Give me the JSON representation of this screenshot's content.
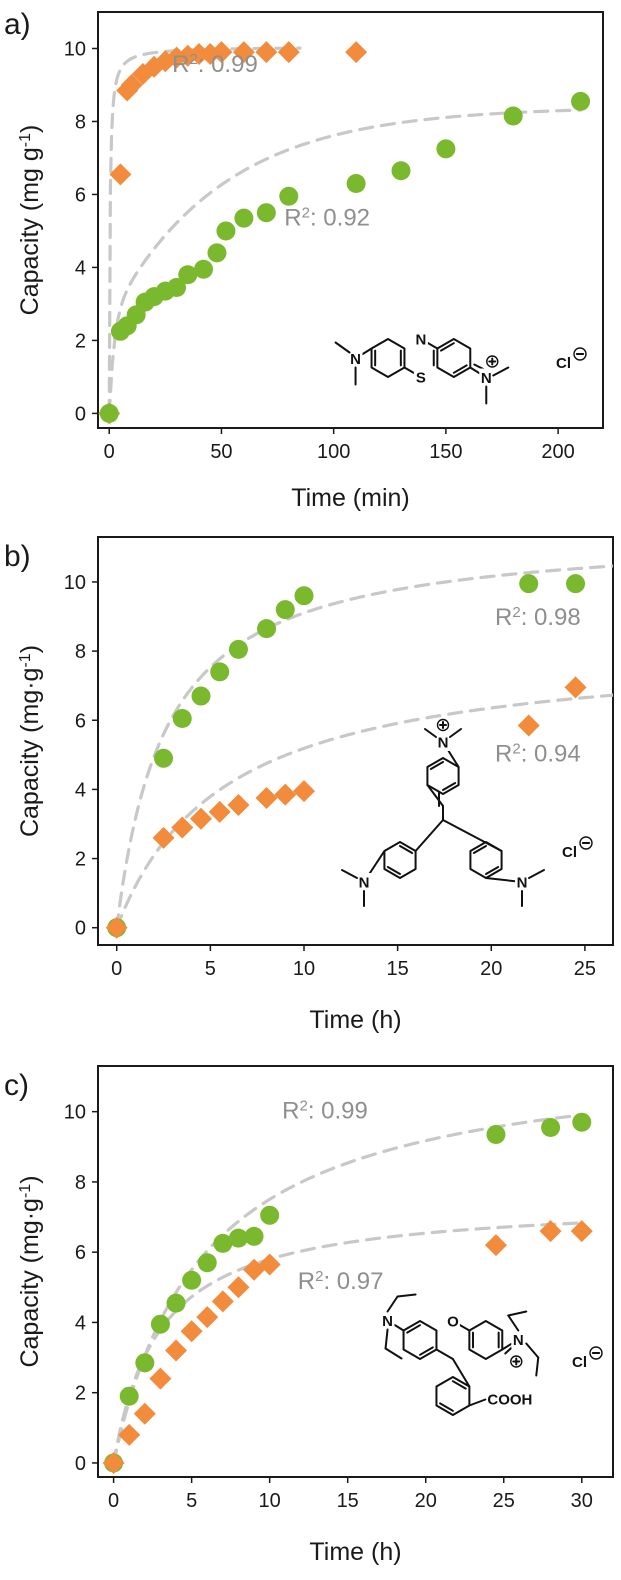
{
  "chart_data": [
    {
      "type": "scatter",
      "panel_label": "a)",
      "xlabel": "Time (min)",
      "ylabel": "Capacity (mg g-1)",
      "ylabel_parts": [
        "Capacity (mg g",
        "-1",
        ")"
      ],
      "xlim": [
        -5,
        220
      ],
      "ylim": [
        -0.4,
        11
      ],
      "xticks": [
        0,
        50,
        100,
        150,
        200
      ],
      "yticks": [
        0,
        2,
        4,
        6,
        8,
        10
      ],
      "xtick_labels": [
        "0",
        "50",
        "100",
        "150",
        "200"
      ],
      "ytick_labels": [
        "0",
        "2",
        "4",
        "6",
        "8",
        "10"
      ],
      "series": [
        {
          "marker": "diamond",
          "color": "#f28c3c",
          "x": [
            0,
            5,
            8,
            10,
            15,
            20,
            25,
            30,
            35,
            40,
            45,
            50,
            60,
            70,
            80,
            110
          ],
          "y": [
            0,
            6.55,
            8.85,
            9.0,
            9.3,
            9.5,
            9.65,
            9.75,
            9.8,
            9.85,
            9.85,
            9.9,
            9.9,
            9.9,
            9.9,
            9.9
          ],
          "fit": {
            "model": "pseudo-second-order",
            "qe": 10.05,
            "k": 0.3,
            "xmax": 85
          }
        },
        {
          "marker": "circle",
          "color": "#7ab82e",
          "x": [
            0,
            5,
            8,
            12,
            16,
            20,
            25,
            30,
            35,
            42,
            48,
            52,
            60,
            70,
            80,
            110,
            130,
            150,
            180,
            210
          ],
          "y": [
            0,
            2.25,
            2.4,
            2.7,
            3.05,
            3.2,
            3.35,
            3.45,
            3.8,
            3.95,
            4.4,
            5.0,
            5.35,
            5.5,
            5.95,
            6.3,
            6.65,
            7.25,
            8.15,
            8.55
          ],
          "fit": {
            "model": "two-rate",
            "a": 2.6,
            "k1": 0.45,
            "b": 5.8,
            "k2": 0.02,
            "xmax": 210
          }
        }
      ],
      "annotations": [
        {
          "base": "R",
          "sup": "2",
          "text": ": 0.99",
          "color": "#8f8f8f",
          "x": 28,
          "y": 9.35
        },
        {
          "base": "R",
          "sup": "2",
          "text": ": 0.92",
          "color": "#8f8f8f",
          "x": 78,
          "y": 5.15
        }
      ],
      "molecule": {
        "type": "methylene-blue",
        "counter_ion": "Cl",
        "atoms": [
          "N",
          "S",
          "N"
        ]
      }
    },
    {
      "type": "scatter",
      "panel_label": "b)",
      "xlabel": "Time (h)",
      "ylabel": "Capacity (mg·g-1)",
      "ylabel_parts": [
        "Capacity (mg·g",
        "-1",
        ")"
      ],
      "xlim": [
        -1,
        26.5
      ],
      "ylim": [
        -0.5,
        11.3
      ],
      "xticks": [
        0,
        5,
        10,
        15,
        20,
        25
      ],
      "yticks": [
        0,
        2,
        4,
        6,
        8,
        10
      ],
      "xtick_labels": [
        "0",
        "5",
        "10",
        "15",
        "20",
        "25"
      ],
      "ytick_labels": [
        "0",
        "2",
        "4",
        "6",
        "8",
        "10"
      ],
      "series": [
        {
          "marker": "circle",
          "color": "#7ab82e",
          "x": [
            0,
            2.5,
            3.5,
            4.5,
            5.5,
            6.5,
            8,
            9,
            10,
            22,
            24.5
          ],
          "y": [
            0,
            4.9,
            6.05,
            6.7,
            7.4,
            8.05,
            8.65,
            9.2,
            9.6,
            9.95,
            9.95
          ],
          "fit": {
            "model": "pseudo-second-order",
            "qe": 11.5,
            "k": 0.033,
            "xmax": 26.5
          }
        },
        {
          "marker": "diamond",
          "color": "#f28c3c",
          "x": [
            0,
            2.5,
            3.5,
            4.5,
            5.5,
            6.5,
            8,
            9,
            10,
            22,
            24.5
          ],
          "y": [
            0,
            2.6,
            2.9,
            3.15,
            3.35,
            3.55,
            3.75,
            3.85,
            3.95,
            5.85,
            6.95
          ],
          "fit": {
            "model": "pseudo-second-order",
            "qe": 8.2,
            "k": 0.021,
            "xmax": 26.5
          }
        }
      ],
      "annotations": [
        {
          "base": "R",
          "sup": "2",
          "text": ": 0.98",
          "color": "#8f8f8f",
          "x": 20.2,
          "y": 8.75
        },
        {
          "base": "R",
          "sup": "2",
          "text": ": 0.94",
          "color": "#8f8f8f",
          "x": 20.2,
          "y": 4.8
        }
      ],
      "molecule": {
        "type": "crystal-violet",
        "counter_ion": "Cl",
        "atoms": [
          "N",
          "N",
          "N"
        ]
      }
    },
    {
      "type": "scatter",
      "panel_label": "c)",
      "xlabel": "Time (h)",
      "ylabel": "Capacity (mg·g-1)",
      "ylabel_parts": [
        "Capacity (mg·g",
        "-1",
        ")"
      ],
      "xlim": [
        -1,
        32
      ],
      "ylim": [
        -0.4,
        11.3
      ],
      "xticks": [
        0,
        5,
        10,
        15,
        20,
        25,
        30
      ],
      "yticks": [
        0,
        2,
        4,
        6,
        8,
        10
      ],
      "xtick_labels": [
        "0",
        "5",
        "10",
        "15",
        "20",
        "25",
        "30"
      ],
      "ytick_labels": [
        "0",
        "2",
        "4",
        "6",
        "8",
        "10"
      ],
      "series": [
        {
          "marker": "circle",
          "color": "#7ab82e",
          "x": [
            0,
            1,
            2,
            3,
            4,
            5,
            6,
            7,
            8,
            9,
            10,
            24.5,
            28,
            30
          ],
          "y": [
            0,
            1.9,
            2.85,
            3.95,
            4.55,
            5.2,
            5.7,
            6.25,
            6.4,
            6.45,
            7.05,
            9.35,
            9.55,
            9.7
          ],
          "fit": {
            "model": "pseudo-second-order",
            "qe": 11.8,
            "k": 0.0148,
            "xmax": 30
          }
        },
        {
          "marker": "diamond",
          "color": "#f28c3c",
          "x": [
            0,
            1,
            2,
            3,
            4,
            5,
            6,
            7,
            8,
            9,
            10,
            24.5,
            28,
            30
          ],
          "y": [
            0,
            0.8,
            1.4,
            2.4,
            3.2,
            3.75,
            4.15,
            4.6,
            5.0,
            5.5,
            5.65,
            6.2,
            6.6,
            6.6
          ],
          "fit": {
            "model": "pseudo-second-order",
            "qe": 7.5,
            "k": 0.0455,
            "xmax": 30
          }
        }
      ],
      "annotations": [
        {
          "base": "R",
          "sup": "2",
          "text": ": 0.99",
          "color": "#8f8f8f",
          "x": 10.8,
          "y": 9.8
        },
        {
          "base": "R",
          "sup": "2",
          "text": ": 0.97",
          "color": "#8f8f8f",
          "x": 11.8,
          "y": 4.95
        }
      ],
      "molecule": {
        "type": "rhodamine-b",
        "counter_ion": "Cl",
        "atoms": [
          "N",
          "O",
          "N"
        ],
        "group": "COOH"
      }
    }
  ]
}
